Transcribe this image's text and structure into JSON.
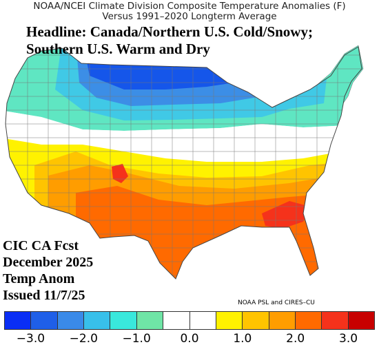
{
  "title": {
    "line1": "NOAA/NCEI Climate Division Composite Temperature Anomalies (F)",
    "line2": "Versus 1991–2020 Longterm Average"
  },
  "headline": {
    "line1": "Headline: Canada/Northern U.S. Cold/Snowy;",
    "line2": "Southern U.S. Warm and Dry"
  },
  "forecast_label": {
    "line1": "CIC CA Fcst",
    "line2": "December 2025",
    "line3": "Temp Anom",
    "line4": "Issued 11/7/25"
  },
  "credit": "NOAA PSL and CIRES–CU",
  "colorbar": {
    "colors": [
      "#0a2ef5",
      "#1f5fe8",
      "#3a8ae8",
      "#38c0ea",
      "#39e8dc",
      "#6fe5a6",
      "#ffffff",
      "#ffffff",
      "#fff200",
      "#ffc400",
      "#ff9d00",
      "#ff6a00",
      "#f5321b",
      "#c80000"
    ],
    "tick_labels": [
      "−3.0",
      "−2.0",
      "−1.0",
      "0.0",
      "1.0",
      "2.0",
      "3.0"
    ]
  },
  "map_colors": {
    "cold_strong": "#1556ea",
    "cold_medium": "#3c8ee6",
    "cold_light": "#40c9e6",
    "cold_slight": "#5fe6c2",
    "neutral": "#ffffff",
    "warm_slight": "#fff200",
    "warm_light": "#ffc400",
    "warm_medium": "#ff9d00",
    "warm_strong": "#ff6a00",
    "hot": "#f5321b",
    "borders": "#666666"
  }
}
